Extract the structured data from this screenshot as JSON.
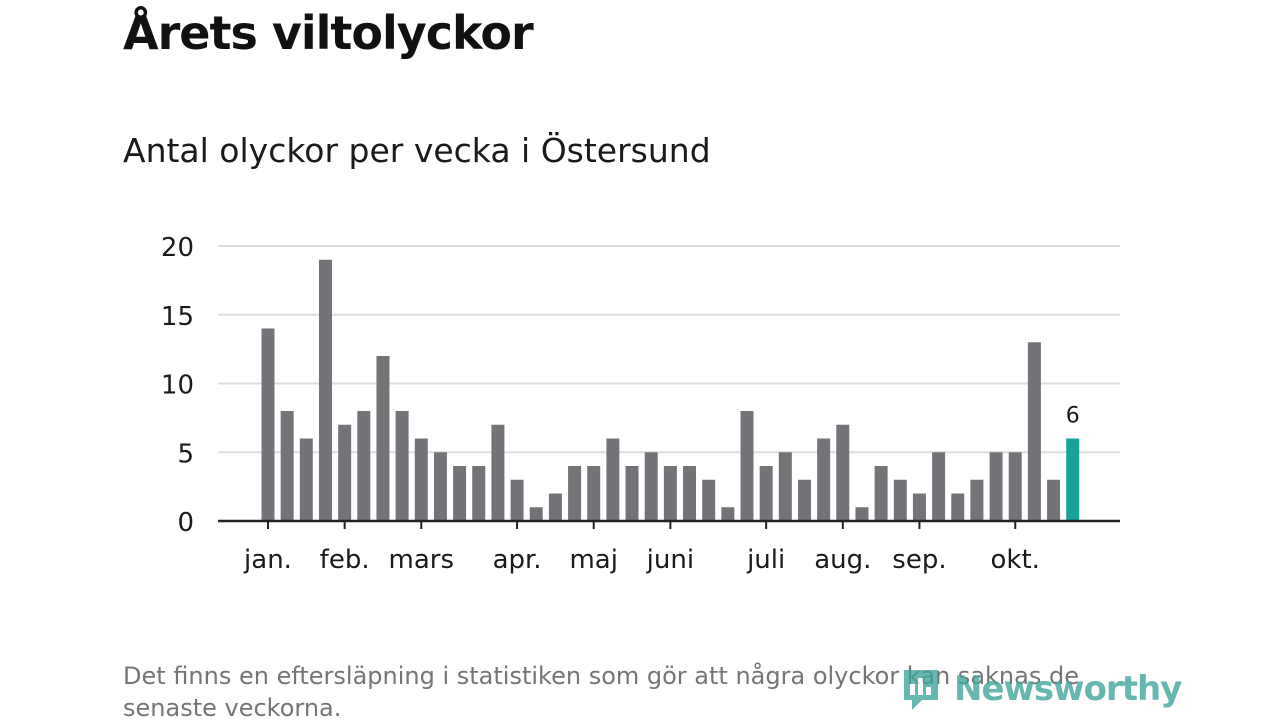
{
  "header": {
    "title": "Årets viltolyckor",
    "subtitle": "Antal olyckor per vecka i Östersund"
  },
  "footer": {
    "note": "Det finns en eftersläpning i statistiken som gör att några olyckor kan saknas de senaste veckorna.",
    "brand": "Newsworthy"
  },
  "colors": {
    "bar": "#747378",
    "highlight": "#17a399",
    "grid": "#dddddd",
    "axis": "#222222",
    "text": "#1a1a1a"
  },
  "chart_data": {
    "type": "bar",
    "title": "Antal olyckor per vecka i Östersund",
    "xlabel": "",
    "ylabel": "",
    "ylim": [
      0,
      20
    ],
    "yticks": [
      0,
      5,
      10,
      15,
      20
    ],
    "grid": true,
    "unit": "olyckor per vecka",
    "values": [
      14,
      8,
      6,
      19,
      7,
      8,
      12,
      8,
      6,
      5,
      4,
      4,
      7,
      3,
      1,
      2,
      4,
      4,
      6,
      4,
      5,
      4,
      4,
      3,
      1,
      8,
      4,
      5,
      3,
      6,
      7,
      1,
      4,
      3,
      2,
      5,
      2,
      3,
      5,
      5,
      13,
      3,
      6
    ],
    "highlight_index": 42,
    "highlight_label": "6",
    "month_ticks": [
      {
        "label": "jan.",
        "bar_index": 0
      },
      {
        "label": "feb.",
        "bar_index": 4
      },
      {
        "label": "mars",
        "bar_index": 8
      },
      {
        "label": "apr.",
        "bar_index": 13
      },
      {
        "label": "maj",
        "bar_index": 17
      },
      {
        "label": "juni",
        "bar_index": 21
      },
      {
        "label": "juli",
        "bar_index": 26
      },
      {
        "label": "aug.",
        "bar_index": 30
      },
      {
        "label": "sep.",
        "bar_index": 34
      },
      {
        "label": "okt.",
        "bar_index": 39
      }
    ]
  }
}
